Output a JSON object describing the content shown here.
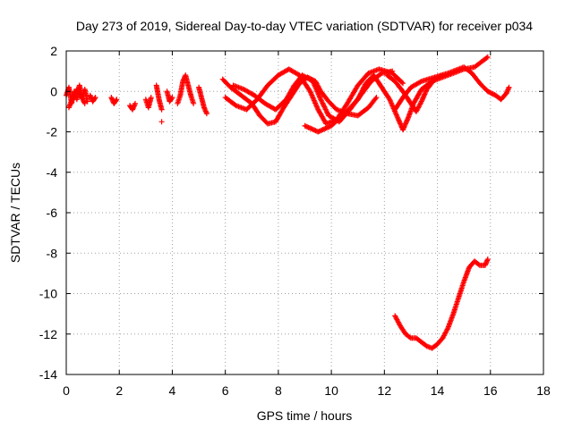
{
  "chart_data": {
    "type": "scatter",
    "title": "Day 273 of 2019, Sidereal Day-to-day VTEC variation (SDTVAR) for receiver p034",
    "xlabel": "GPS time / hours",
    "ylabel": "SDTVAR / TECUs",
    "xlim": [
      0,
      18
    ],
    "ylim": [
      -14,
      2
    ],
    "xticks": [
      0,
      2,
      4,
      6,
      8,
      10,
      12,
      14,
      16,
      18
    ],
    "yticks": [
      -14,
      -12,
      -10,
      -8,
      -6,
      -4,
      -2,
      0,
      2
    ],
    "xtick_labels": [
      "0",
      "2",
      "4",
      "6",
      "8",
      "10",
      "12",
      "14",
      "16",
      "18"
    ],
    "ytick_labels": [
      "-14",
      "-12",
      "-10",
      "-8",
      "-6",
      "-4",
      "-2",
      "0",
      "2"
    ],
    "grid": true,
    "legend": "none",
    "marker": "plus",
    "color": "#ff0000",
    "series": [
      {
        "name": "cluster-0.0-0.8",
        "segments": [
          [
            [
              0.0,
              -0.2
            ],
            [
              0.1,
              0.2
            ],
            [
              0.2,
              -0.6
            ],
            [
              0.3,
              0.0
            ],
            [
              0.4,
              -0.4
            ],
            [
              0.5,
              0.3
            ],
            [
              0.6,
              -0.3
            ],
            [
              0.7,
              0.1
            ],
            [
              0.8,
              -0.5
            ]
          ],
          [
            [
              0.1,
              -0.8
            ],
            [
              0.25,
              -0.3
            ],
            [
              0.4,
              0.1
            ],
            [
              0.55,
              -0.2
            ],
            [
              0.7,
              -0.6
            ]
          ]
        ]
      },
      {
        "name": "blip-1.0",
        "segments": [
          [
            [
              0.9,
              -0.2
            ],
            [
              1.0,
              -0.5
            ],
            [
              1.1,
              -0.3
            ]
          ]
        ]
      },
      {
        "name": "blip-1.8",
        "segments": [
          [
            [
              1.7,
              -0.3
            ],
            [
              1.8,
              -0.6
            ],
            [
              1.9,
              -0.4
            ]
          ]
        ]
      },
      {
        "name": "blip-2.5",
        "segments": [
          [
            [
              2.4,
              -0.7
            ],
            [
              2.5,
              -0.9
            ],
            [
              2.6,
              -0.6
            ]
          ]
        ]
      },
      {
        "name": "blip-3.1",
        "segments": [
          [
            [
              3.0,
              -0.4
            ],
            [
              3.1,
              -0.8
            ],
            [
              3.2,
              -0.3
            ]
          ]
        ]
      },
      {
        "name": "lone-3.6",
        "segments": [
          [
            [
              3.6,
              -1.5
            ]
          ]
        ]
      },
      {
        "name": "cluster-3.5-5.3",
        "segments": [
          [
            [
              3.4,
              0.3
            ],
            [
              3.5,
              -0.4
            ],
            [
              3.6,
              -0.9
            ]
          ],
          [
            [
              3.8,
              0.0
            ],
            [
              3.9,
              -0.5
            ],
            [
              4.0,
              -0.3
            ]
          ],
          [
            [
              4.2,
              -0.6
            ],
            [
              4.3,
              -0.2
            ],
            [
              4.4,
              0.5
            ],
            [
              4.5,
              0.8
            ],
            [
              4.6,
              0.3
            ],
            [
              4.7,
              -0.2
            ],
            [
              4.8,
              -0.6
            ]
          ],
          [
            [
              5.0,
              0.2
            ],
            [
              5.1,
              -0.3
            ],
            [
              5.2,
              -0.8
            ],
            [
              5.3,
              -1.1
            ]
          ]
        ]
      },
      {
        "name": "track-a",
        "segments": [
          [
            [
              5.9,
              0.6
            ],
            [
              6.2,
              0.2
            ],
            [
              6.6,
              -0.2
            ],
            [
              7.0,
              -0.6
            ],
            [
              7.3,
              -1.2
            ],
            [
              7.6,
              -1.6
            ],
            [
              7.9,
              -1.5
            ],
            [
              8.2,
              -0.8
            ],
            [
              8.5,
              -0.2
            ],
            [
              8.8,
              0.4
            ],
            [
              9.1,
              0.7
            ],
            [
              9.4,
              0.5
            ],
            [
              9.6,
              0.0
            ],
            [
              9.9,
              -0.5
            ],
            [
              10.2,
              -0.9
            ],
            [
              10.6,
              -1.1
            ],
            [
              11.0,
              -1.2
            ],
            [
              11.4,
              -0.8
            ],
            [
              11.7,
              -0.3
            ]
          ]
        ]
      },
      {
        "name": "track-b",
        "segments": [
          [
            [
              6.0,
              -0.3
            ],
            [
              6.4,
              -0.7
            ],
            [
              6.8,
              -0.9
            ],
            [
              7.2,
              -0.4
            ],
            [
              7.6,
              0.3
            ],
            [
              8.0,
              0.8
            ],
            [
              8.4,
              1.1
            ],
            [
              8.8,
              0.8
            ],
            [
              9.2,
              0.0
            ],
            [
              9.5,
              -0.9
            ],
            [
              9.8,
              -1.6
            ],
            [
              10.2,
              -1.4
            ],
            [
              10.6,
              -0.6
            ],
            [
              11.0,
              0.3
            ],
            [
              11.4,
              0.9
            ],
            [
              11.8,
              1.1
            ],
            [
              12.3,
              0.9
            ],
            [
              12.7,
              0.4
            ]
          ]
        ]
      },
      {
        "name": "track-c",
        "segments": [
          [
            [
              6.3,
              0.3
            ],
            [
              6.7,
              0.1
            ],
            [
              7.1,
              -0.2
            ],
            [
              7.5,
              -0.6
            ],
            [
              7.9,
              -0.9
            ],
            [
              8.3,
              -0.4
            ],
            [
              8.6,
              0.3
            ],
            [
              8.9,
              0.8
            ],
            [
              9.3,
              0.5
            ],
            [
              9.6,
              -0.4
            ],
            [
              9.9,
              -1.2
            ],
            [
              10.3,
              -1.5
            ],
            [
              10.7,
              -0.9
            ],
            [
              11.1,
              -0.2
            ],
            [
              11.5,
              0.5
            ],
            [
              11.9,
              0.9
            ],
            [
              12.3,
              1.0
            ]
          ]
        ]
      },
      {
        "name": "track-d",
        "segments": [
          [
            [
              9.0,
              -1.7
            ],
            [
              9.5,
              -2.0
            ],
            [
              10.0,
              -1.7
            ],
            [
              10.5,
              -1.1
            ],
            [
              11.0,
              -0.4
            ],
            [
              11.3,
              0.4
            ],
            [
              11.6,
              0.8
            ],
            [
              11.9,
              0.2
            ],
            [
              12.2,
              -0.4
            ],
            [
              12.5,
              -1.3
            ],
            [
              12.7,
              -1.9
            ],
            [
              12.9,
              -1.3
            ],
            [
              13.1,
              -0.6
            ],
            [
              13.4,
              0.1
            ],
            [
              13.8,
              0.5
            ],
            [
              14.2,
              0.7
            ],
            [
              14.6,
              0.9
            ],
            [
              15.0,
              1.1
            ],
            [
              15.4,
              1.2
            ],
            [
              15.7,
              1.5
            ],
            [
              15.9,
              1.7
            ]
          ]
        ]
      },
      {
        "name": "track-e",
        "segments": [
          [
            [
              12.4,
              -0.9
            ],
            [
              12.7,
              -0.3
            ],
            [
              13.0,
              0.2
            ],
            [
              13.4,
              0.5
            ],
            [
              13.9,
              0.7
            ],
            [
              14.4,
              0.9
            ],
            [
              14.8,
              1.1
            ],
            [
              15.0,
              1.2
            ],
            [
              15.3,
              0.9
            ],
            [
              15.6,
              0.4
            ],
            [
              15.9,
              0.0
            ],
            [
              16.2,
              -0.2
            ],
            [
              16.4,
              -0.4
            ],
            [
              16.6,
              -0.1
            ],
            [
              16.7,
              0.2
            ]
          ]
        ]
      },
      {
        "name": "track-f",
        "segments": [
          [
            [
              12.1,
              0.8
            ],
            [
              12.4,
              0.5
            ],
            [
              12.7,
              0.0
            ],
            [
              13.0,
              -0.6
            ],
            [
              13.2,
              -1.0
            ],
            [
              13.4,
              -0.5
            ],
            [
              13.6,
              0.1
            ],
            [
              13.9,
              0.6
            ],
            [
              14.2,
              0.8
            ]
          ]
        ]
      },
      {
        "name": "low-branch",
        "segments": [
          [
            [
              12.4,
              -11.1
            ],
            [
              12.6,
              -11.6
            ],
            [
              12.8,
              -12.0
            ],
            [
              13.0,
              -12.2
            ],
            [
              13.2,
              -12.2
            ],
            [
              13.4,
              -12.4
            ],
            [
              13.6,
              -12.6
            ],
            [
              13.8,
              -12.7
            ],
            [
              14.0,
              -12.5
            ],
            [
              14.2,
              -12.2
            ],
            [
              14.4,
              -11.7
            ],
            [
              14.6,
              -11.0
            ],
            [
              14.8,
              -10.2
            ],
            [
              15.0,
              -9.4
            ],
            [
              15.2,
              -8.7
            ],
            [
              15.4,
              -8.4
            ],
            [
              15.6,
              -8.6
            ],
            [
              15.8,
              -8.6
            ],
            [
              15.9,
              -8.3
            ]
          ]
        ]
      }
    ]
  }
}
